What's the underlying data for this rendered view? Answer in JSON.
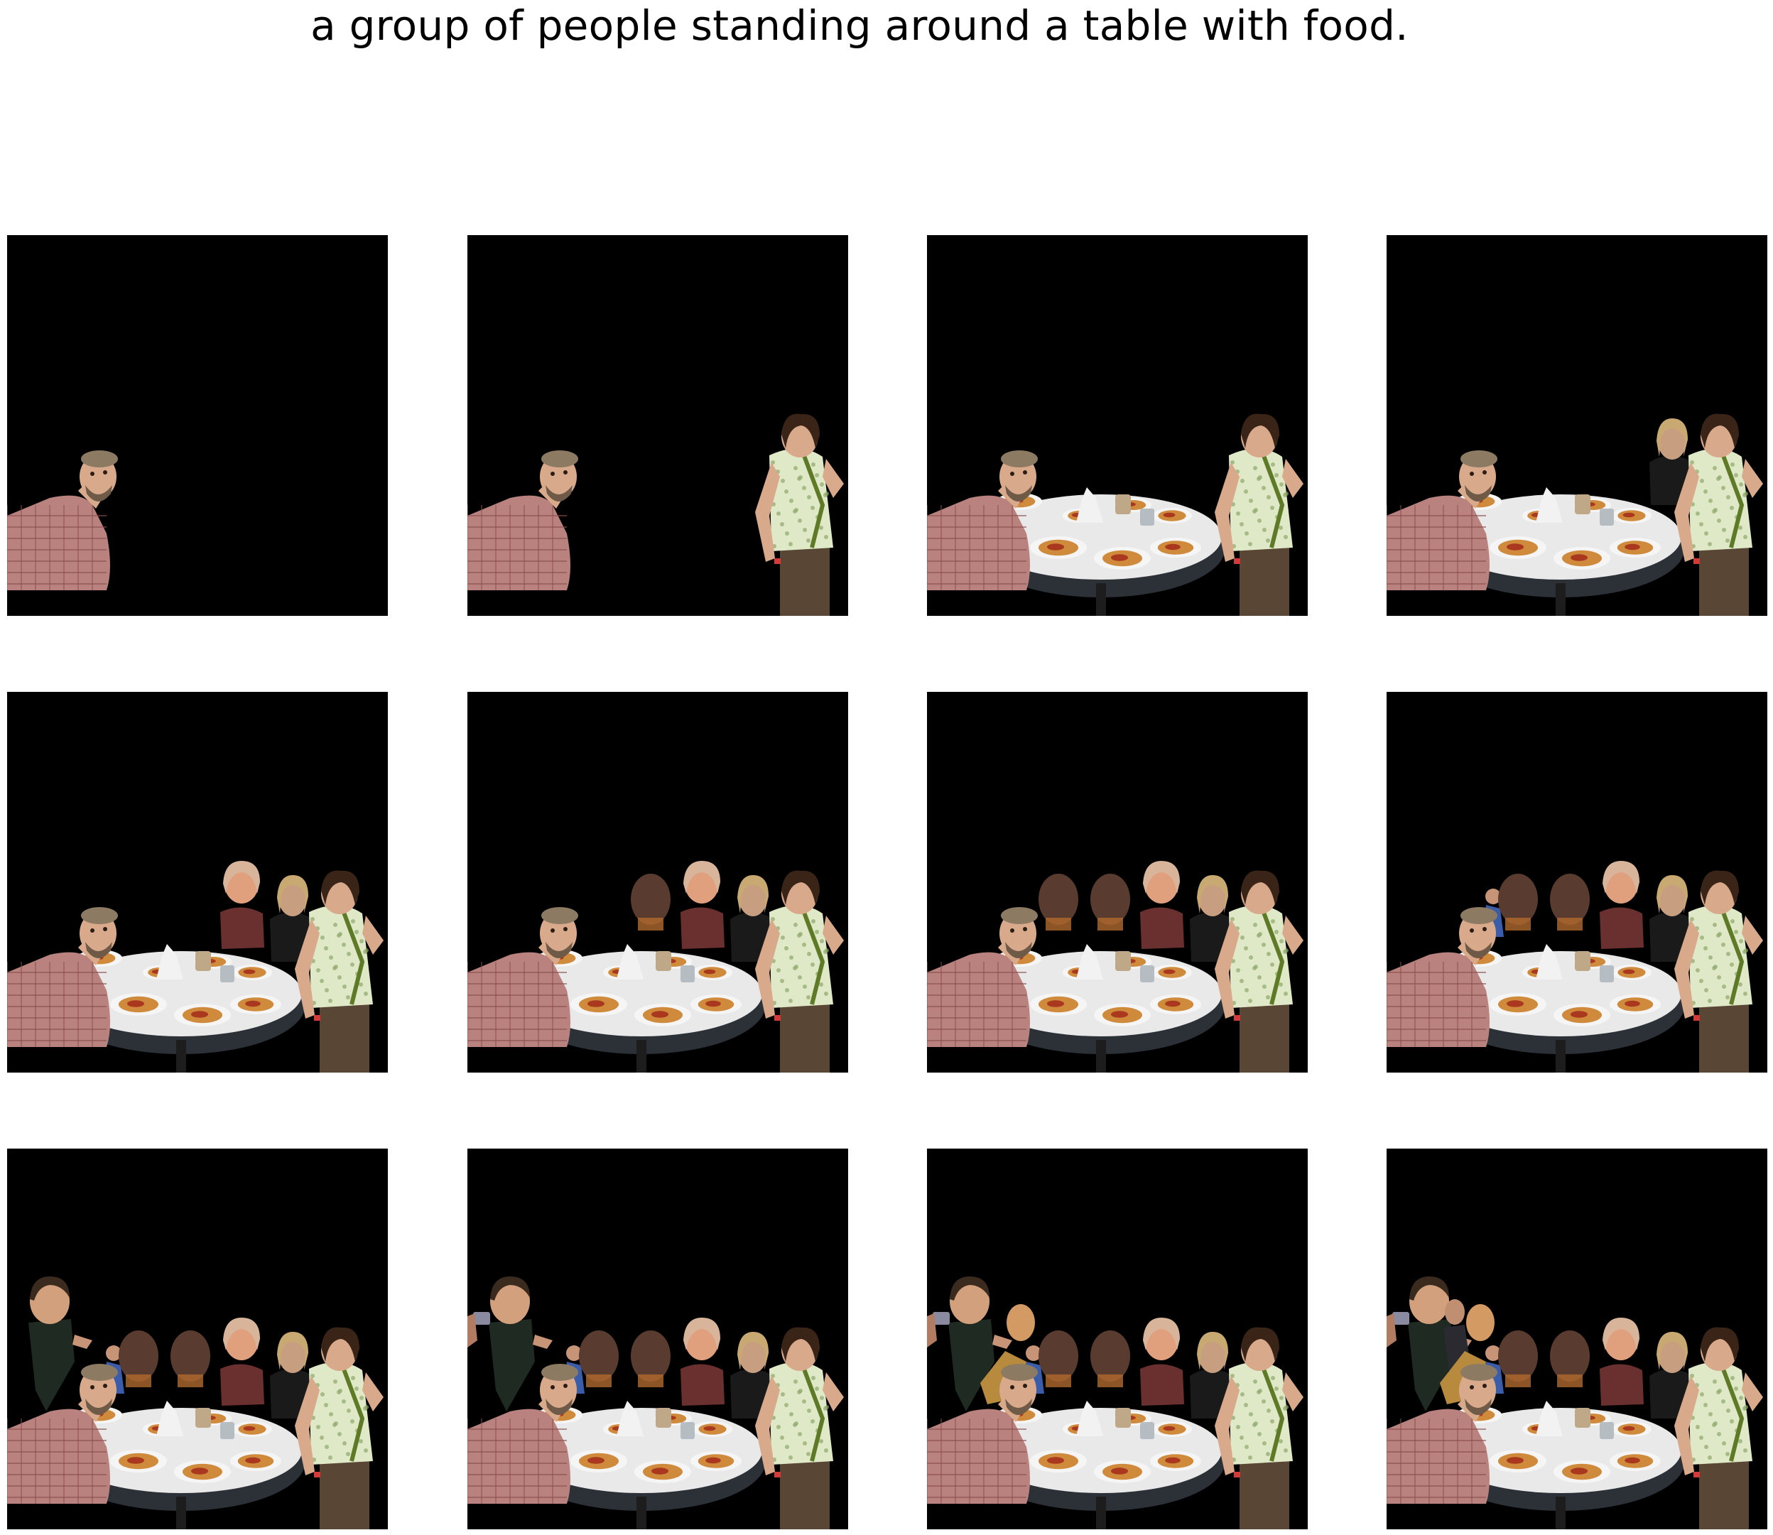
{
  "caption": "a group of people standing around a table with food.",
  "figure": {
    "rows": 3,
    "columns": 4,
    "background_color": "#000000",
    "panels": [
      {
        "step": 1,
        "objects": [
          "man-leaning"
        ]
      },
      {
        "step": 2,
        "objects": [
          "man-leaning",
          "woman-green-top"
        ]
      },
      {
        "step": 3,
        "objects": [
          "man-leaning",
          "woman-green-top",
          "round-table-with-food"
        ]
      },
      {
        "step": 4,
        "objects": [
          "man-leaning",
          "woman-green-top",
          "round-table-with-food",
          "blonde-woman"
        ]
      },
      {
        "step": 5,
        "objects": [
          "man-leaning",
          "woman-green-top",
          "round-table-with-food",
          "blonde-woman",
          "older-woman"
        ]
      },
      {
        "step": 6,
        "objects": [
          "man-leaning",
          "woman-green-top",
          "round-table-with-food",
          "blonde-woman",
          "older-woman",
          "dark-face-1"
        ]
      },
      {
        "step": 7,
        "objects": [
          "man-leaning",
          "woman-green-top",
          "round-table-with-food",
          "blonde-woman",
          "older-woman",
          "dark-face-1",
          "dark-face-2"
        ]
      },
      {
        "step": 8,
        "objects": [
          "man-leaning",
          "woman-green-top",
          "round-table-with-food",
          "blonde-woman",
          "older-woman",
          "dark-face-1",
          "dark-face-2",
          "small-figure-blue"
        ]
      },
      {
        "step": 9,
        "objects": [
          "man-leaning",
          "woman-green-top",
          "round-table-with-food",
          "blonde-woman",
          "older-woman",
          "dark-face-1",
          "dark-face-2",
          "small-figure-blue",
          "boy"
        ]
      },
      {
        "step": 10,
        "objects": [
          "man-leaning",
          "woman-green-top",
          "round-table-with-food",
          "blonde-woman",
          "older-woman",
          "dark-face-1",
          "dark-face-2",
          "small-figure-blue",
          "boy",
          "camera-hand"
        ]
      },
      {
        "step": 11,
        "objects": [
          "man-leaning",
          "woman-green-top",
          "round-table-with-food",
          "blonde-woman",
          "older-woman",
          "dark-face-1",
          "dark-face-2",
          "small-figure-blue",
          "boy",
          "camera-hand",
          "bald-man-gold"
        ]
      },
      {
        "step": 12,
        "objects": [
          "man-leaning",
          "woman-green-top",
          "round-table-with-food",
          "blonde-woman",
          "older-woman",
          "dark-face-1",
          "dark-face-2",
          "small-figure-blue",
          "boy",
          "camera-hand",
          "bald-man-gold",
          "man-in-suit"
        ]
      }
    ]
  },
  "colors": {
    "canvas": "#000000",
    "plaid_shirt": "#b9827f",
    "skin": "#d9a98c",
    "green_top": "#dfe9c8",
    "strap": "#5f7a26",
    "trousers": "#5a4634",
    "plate": "#f5f5f5",
    "pizza": "#d08a3c",
    "sauce": "#a9381f",
    "table_top": "#2c3138",
    "blonde_hair": "#c9a972",
    "older_woman_hair": "#d8b59a",
    "dark_face": "#5a3b30",
    "blue_shirt": "#3b5ca8",
    "gold": "#b78a3e",
    "suit": "#2a2a30"
  }
}
